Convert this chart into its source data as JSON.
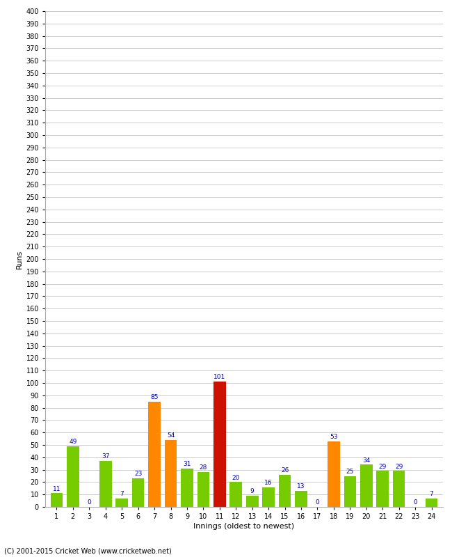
{
  "xlabel": "Innings (oldest to newest)",
  "ylabel": "Runs",
  "values": [
    11,
    49,
    0,
    37,
    7,
    23,
    85,
    54,
    31,
    28,
    101,
    20,
    9,
    16,
    26,
    13,
    0,
    53,
    25,
    34,
    29,
    29,
    0,
    7
  ],
  "innings": [
    1,
    2,
    3,
    4,
    5,
    6,
    7,
    8,
    9,
    10,
    11,
    12,
    13,
    14,
    15,
    16,
    17,
    18,
    19,
    20,
    21,
    22,
    23,
    24
  ],
  "colors": [
    "#77cc00",
    "#77cc00",
    "#77cc00",
    "#77cc00",
    "#77cc00",
    "#77cc00",
    "#ff8800",
    "#ff8800",
    "#77cc00",
    "#77cc00",
    "#cc1100",
    "#77cc00",
    "#77cc00",
    "#77cc00",
    "#77cc00",
    "#77cc00",
    "#77cc00",
    "#ff8800",
    "#77cc00",
    "#77cc00",
    "#77cc00",
    "#77cc00",
    "#77cc00",
    "#77cc00"
  ],
  "ylim": [
    0,
    400
  ],
  "ytick_step": 10,
  "label_color": "#0000bb",
  "background_color": "#ffffff",
  "grid_color": "#cccccc",
  "footer": "(C) 2001-2015 Cricket Web (www.cricketweb.net)",
  "bar_width": 0.75
}
